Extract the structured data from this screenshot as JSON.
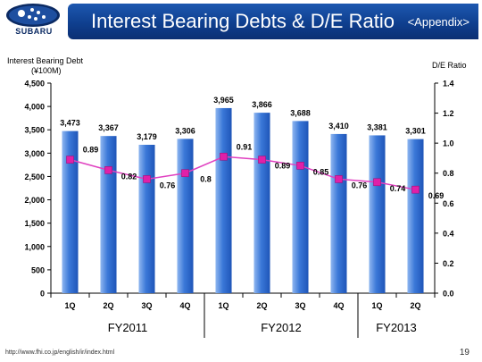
{
  "header": {
    "logo_text": "SUBARU",
    "title": "Interest Bearing Debts & D/E Ratio",
    "subtitle": "<Appendix>"
  },
  "footer": {
    "url": "http://www.fhi.co.jp/english/ir/index.html",
    "page_number": "19"
  },
  "colors": {
    "title_bar": "#0f3f8f",
    "bar": "#3a78d8",
    "line": "#e040c0",
    "marker": "#e020a8"
  },
  "chart_data": {
    "type": "bar",
    "left_axis_label_line1": "Interest Bearing Debt",
    "left_axis_label_line2": "(¥100M)",
    "right_axis_label": "D/E Ratio",
    "categories": [
      "1Q",
      "2Q",
      "3Q",
      "4Q",
      "1Q",
      "2Q",
      "3Q",
      "4Q",
      "1Q",
      "2Q"
    ],
    "groups": [
      {
        "label": "FY2011",
        "start": 0,
        "end": 3
      },
      {
        "label": "FY2012",
        "start": 4,
        "end": 7
      },
      {
        "label": "FY2013",
        "start": 8,
        "end": 9
      }
    ],
    "series": [
      {
        "kind": "bar",
        "axis": "left",
        "values": [
          3473,
          3367,
          3179,
          3306,
          3965,
          3866,
          3688,
          3410,
          3381,
          3301
        ],
        "labels": [
          "3,473",
          "3,367",
          "3,179",
          "3,306",
          "3,965",
          "3,866",
          "3,688",
          "3,410",
          "3,381",
          "3,301"
        ]
      },
      {
        "kind": "line",
        "axis": "right",
        "values": [
          0.89,
          0.82,
          0.76,
          0.8,
          0.91,
          0.89,
          0.85,
          0.76,
          0.74,
          0.69
        ],
        "labels": [
          "0.89",
          "0.82",
          "0.76",
          "0.8",
          "0.91",
          "0.89",
          "0.85",
          "0.76",
          "0.74",
          "0.69"
        ]
      }
    ],
    "left_axis": {
      "min": 0,
      "max": 4500,
      "ticks": [
        "0",
        "500",
        "1,000",
        "1,500",
        "2,000",
        "2,500",
        "3,000",
        "3,500",
        "4,000",
        "4,500"
      ]
    },
    "right_axis": {
      "min": 0,
      "max": 1.4,
      "ticks": [
        "0.0",
        "0.2",
        "0.4",
        "0.6",
        "0.8",
        "1.0",
        "1.2",
        "1.4"
      ]
    }
  }
}
